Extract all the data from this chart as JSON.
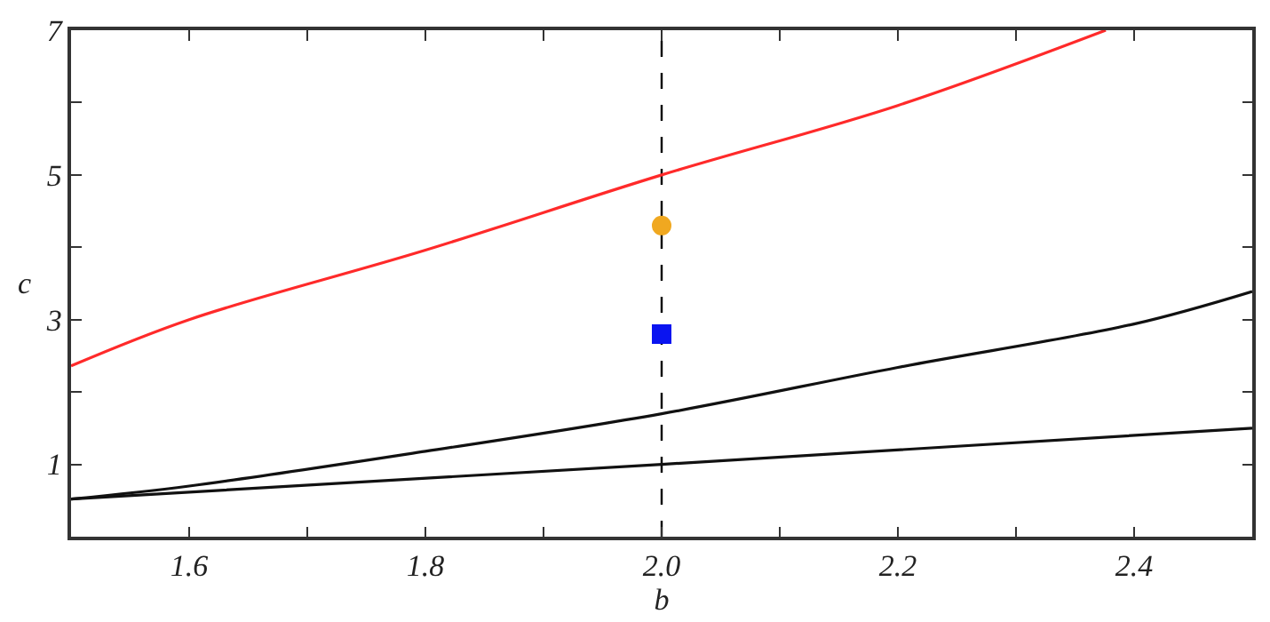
{
  "chart_data": {
    "type": "line",
    "xlabel": "b",
    "ylabel": "c",
    "xlim": [
      1.5,
      2.5
    ],
    "ylim": [
      0,
      7
    ],
    "xticks": [
      {
        "value": 1.5,
        "label": null
      },
      1.6,
      {
        "value": 1.7,
        "label": null
      },
      1.8,
      {
        "value": 1.9,
        "label": null
      },
      {
        "value": 2.0,
        "label": "2.0"
      },
      {
        "value": 2.1,
        "label": null
      },
      2.2,
      {
        "value": 2.3,
        "label": null
      },
      2.4,
      {
        "value": 2.5,
        "label": null
      }
    ],
    "yticks": [
      {
        "value": 0,
        "label": null
      },
      1,
      {
        "value": 2,
        "label": null
      },
      3,
      {
        "value": 4,
        "label": null
      },
      5,
      {
        "value": 6,
        "label": null
      },
      7
    ],
    "grid": false,
    "marker": "none",
    "line_style": "solid",
    "series": [
      {
        "color": "#ff2a2a",
        "x": [
          1.5,
          1.6,
          1.8,
          2.0,
          2.2,
          2.376
        ],
        "values": [
          2.36,
          3.0,
          3.96,
          5.0,
          5.96,
          7.0
        ]
      },
      {
        "color": "#111111",
        "x": [
          1.5,
          1.6,
          1.8,
          2.0,
          2.2,
          2.4,
          2.5
        ],
        "values": [
          0.52,
          0.7,
          1.18,
          1.7,
          2.34,
          2.94,
          3.39
        ]
      },
      {
        "color": "#111111",
        "x": [
          1.5,
          2.0,
          2.5
        ],
        "values": [
          0.52,
          1.0,
          1.5
        ]
      },
      {
        "type": "scatter",
        "marker": "circle",
        "color": "#f0a820",
        "x": [
          2.0
        ],
        "values": [
          4.3
        ]
      },
      {
        "type": "scatter",
        "marker": "square",
        "color": "#0a14f0",
        "x": [
          2.0
        ],
        "values": [
          2.8
        ]
      }
    ],
    "ref_lines": [
      {
        "axis": "x",
        "value": 2.0,
        "color": "#000000",
        "line_style": "dashed"
      }
    ]
  }
}
